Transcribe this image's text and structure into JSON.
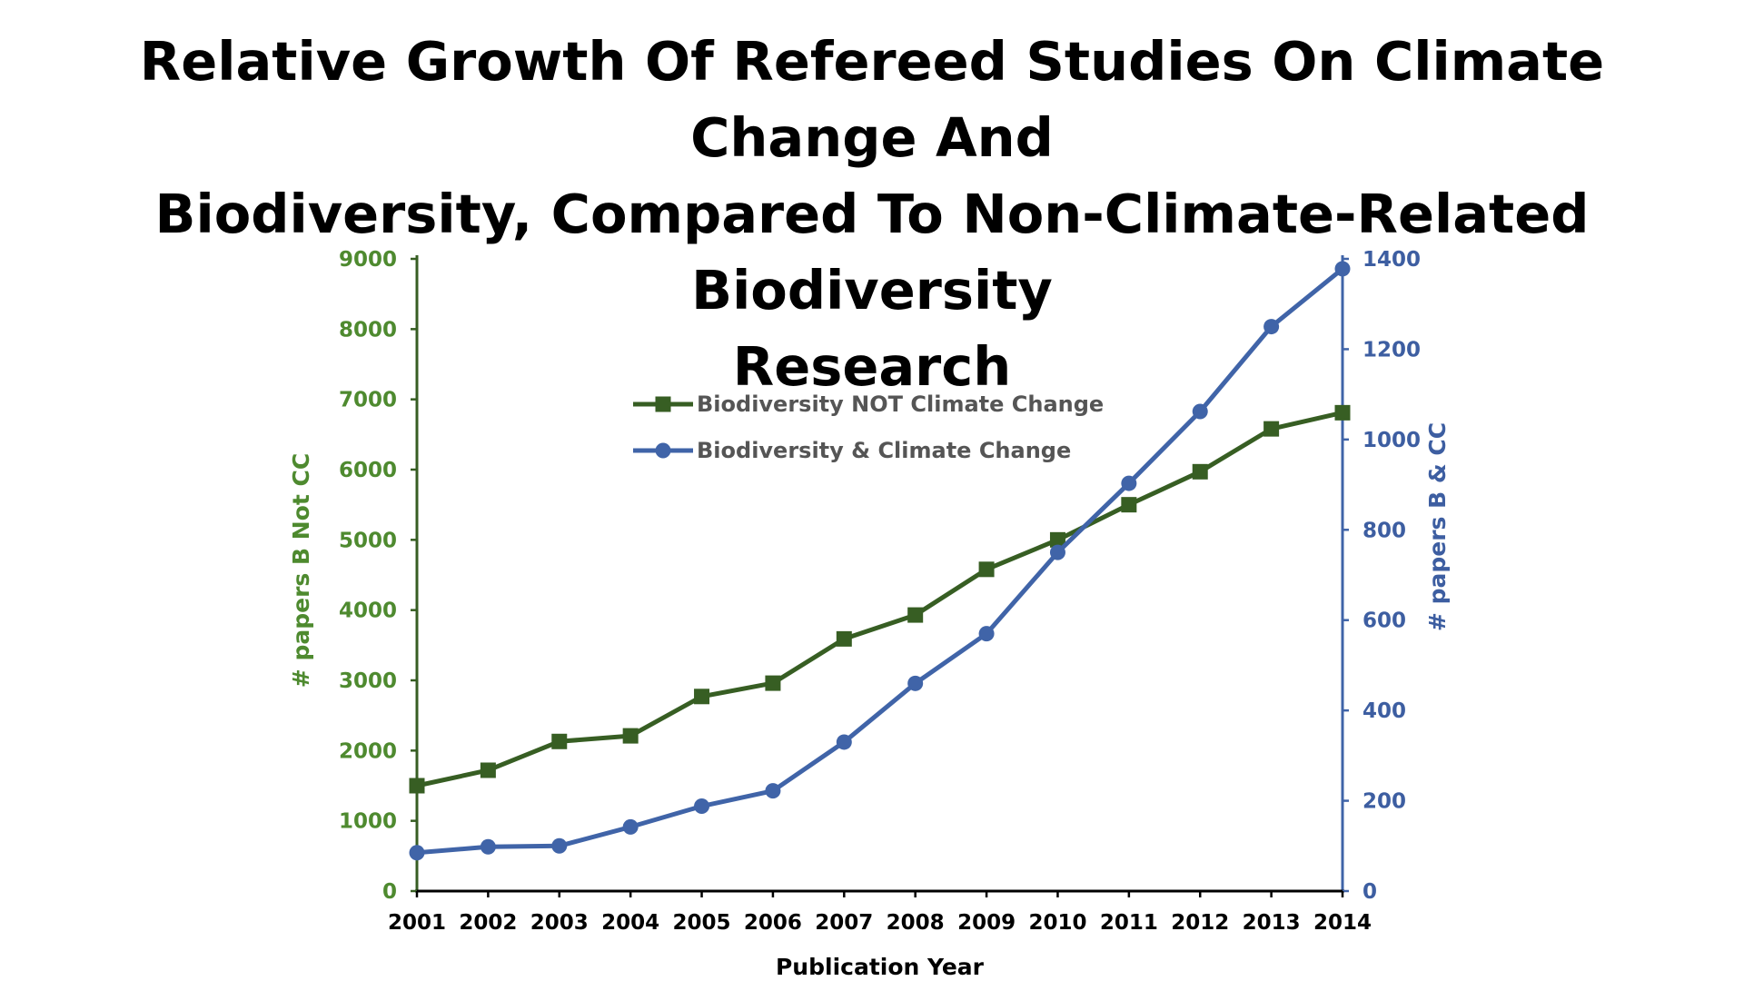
{
  "title_lines": [
    "Relative Growth Of Refereed Studies On Climate Change And",
    "Biodiversity, Compared To Non-Climate-Related Biodiversity",
    "Research"
  ],
  "colors": {
    "green": "#375e23",
    "green_label": "#4e8a2f",
    "blue": "#4064a8",
    "blue_label": "#3d5ea1",
    "x_axis": "#000000"
  },
  "chart_data": {
    "type": "line",
    "title": "Relative Growth Of Refereed Studies On Climate Change And Biodiversity, Compared To Non-Climate-Related Biodiversity Research",
    "xlabel": "Publication Year",
    "ylabel_left": "# papers B Not CC",
    "ylabel_right": "# papers B & CC",
    "x": [
      "2001",
      "2002",
      "2003",
      "2004",
      "2005",
      "2006",
      "2007",
      "2008",
      "2009",
      "2010",
      "2011",
      "2012",
      "2013",
      "2014"
    ],
    "ylim_left": [
      0,
      9000
    ],
    "ylim_right": [
      0,
      1400
    ],
    "yticks_left": [
      "0",
      "1000",
      "2000",
      "3000",
      "4000",
      "5000",
      "6000",
      "7000",
      "8000",
      "9000"
    ],
    "yticks_right": [
      "0",
      "200",
      "400",
      "600",
      "800",
      "1000",
      "1200",
      "1400"
    ],
    "grid": false,
    "legend_position": "top-center",
    "series": [
      {
        "name": "Biodiversity NOT Climate Change",
        "axis": "left",
        "marker": "square",
        "values": [
          1500,
          1720,
          2130,
          2210,
          2770,
          2960,
          3590,
          3930,
          4580,
          5000,
          5500,
          5970,
          6580,
          6810
        ]
      },
      {
        "name": "Biodiversity & Climate Change",
        "axis": "right",
        "marker": "circle",
        "values": [
          85,
          98,
          100,
          142,
          188,
          222,
          330,
          460,
          570,
          750,
          903,
          1062,
          1250,
          1378
        ]
      }
    ]
  }
}
